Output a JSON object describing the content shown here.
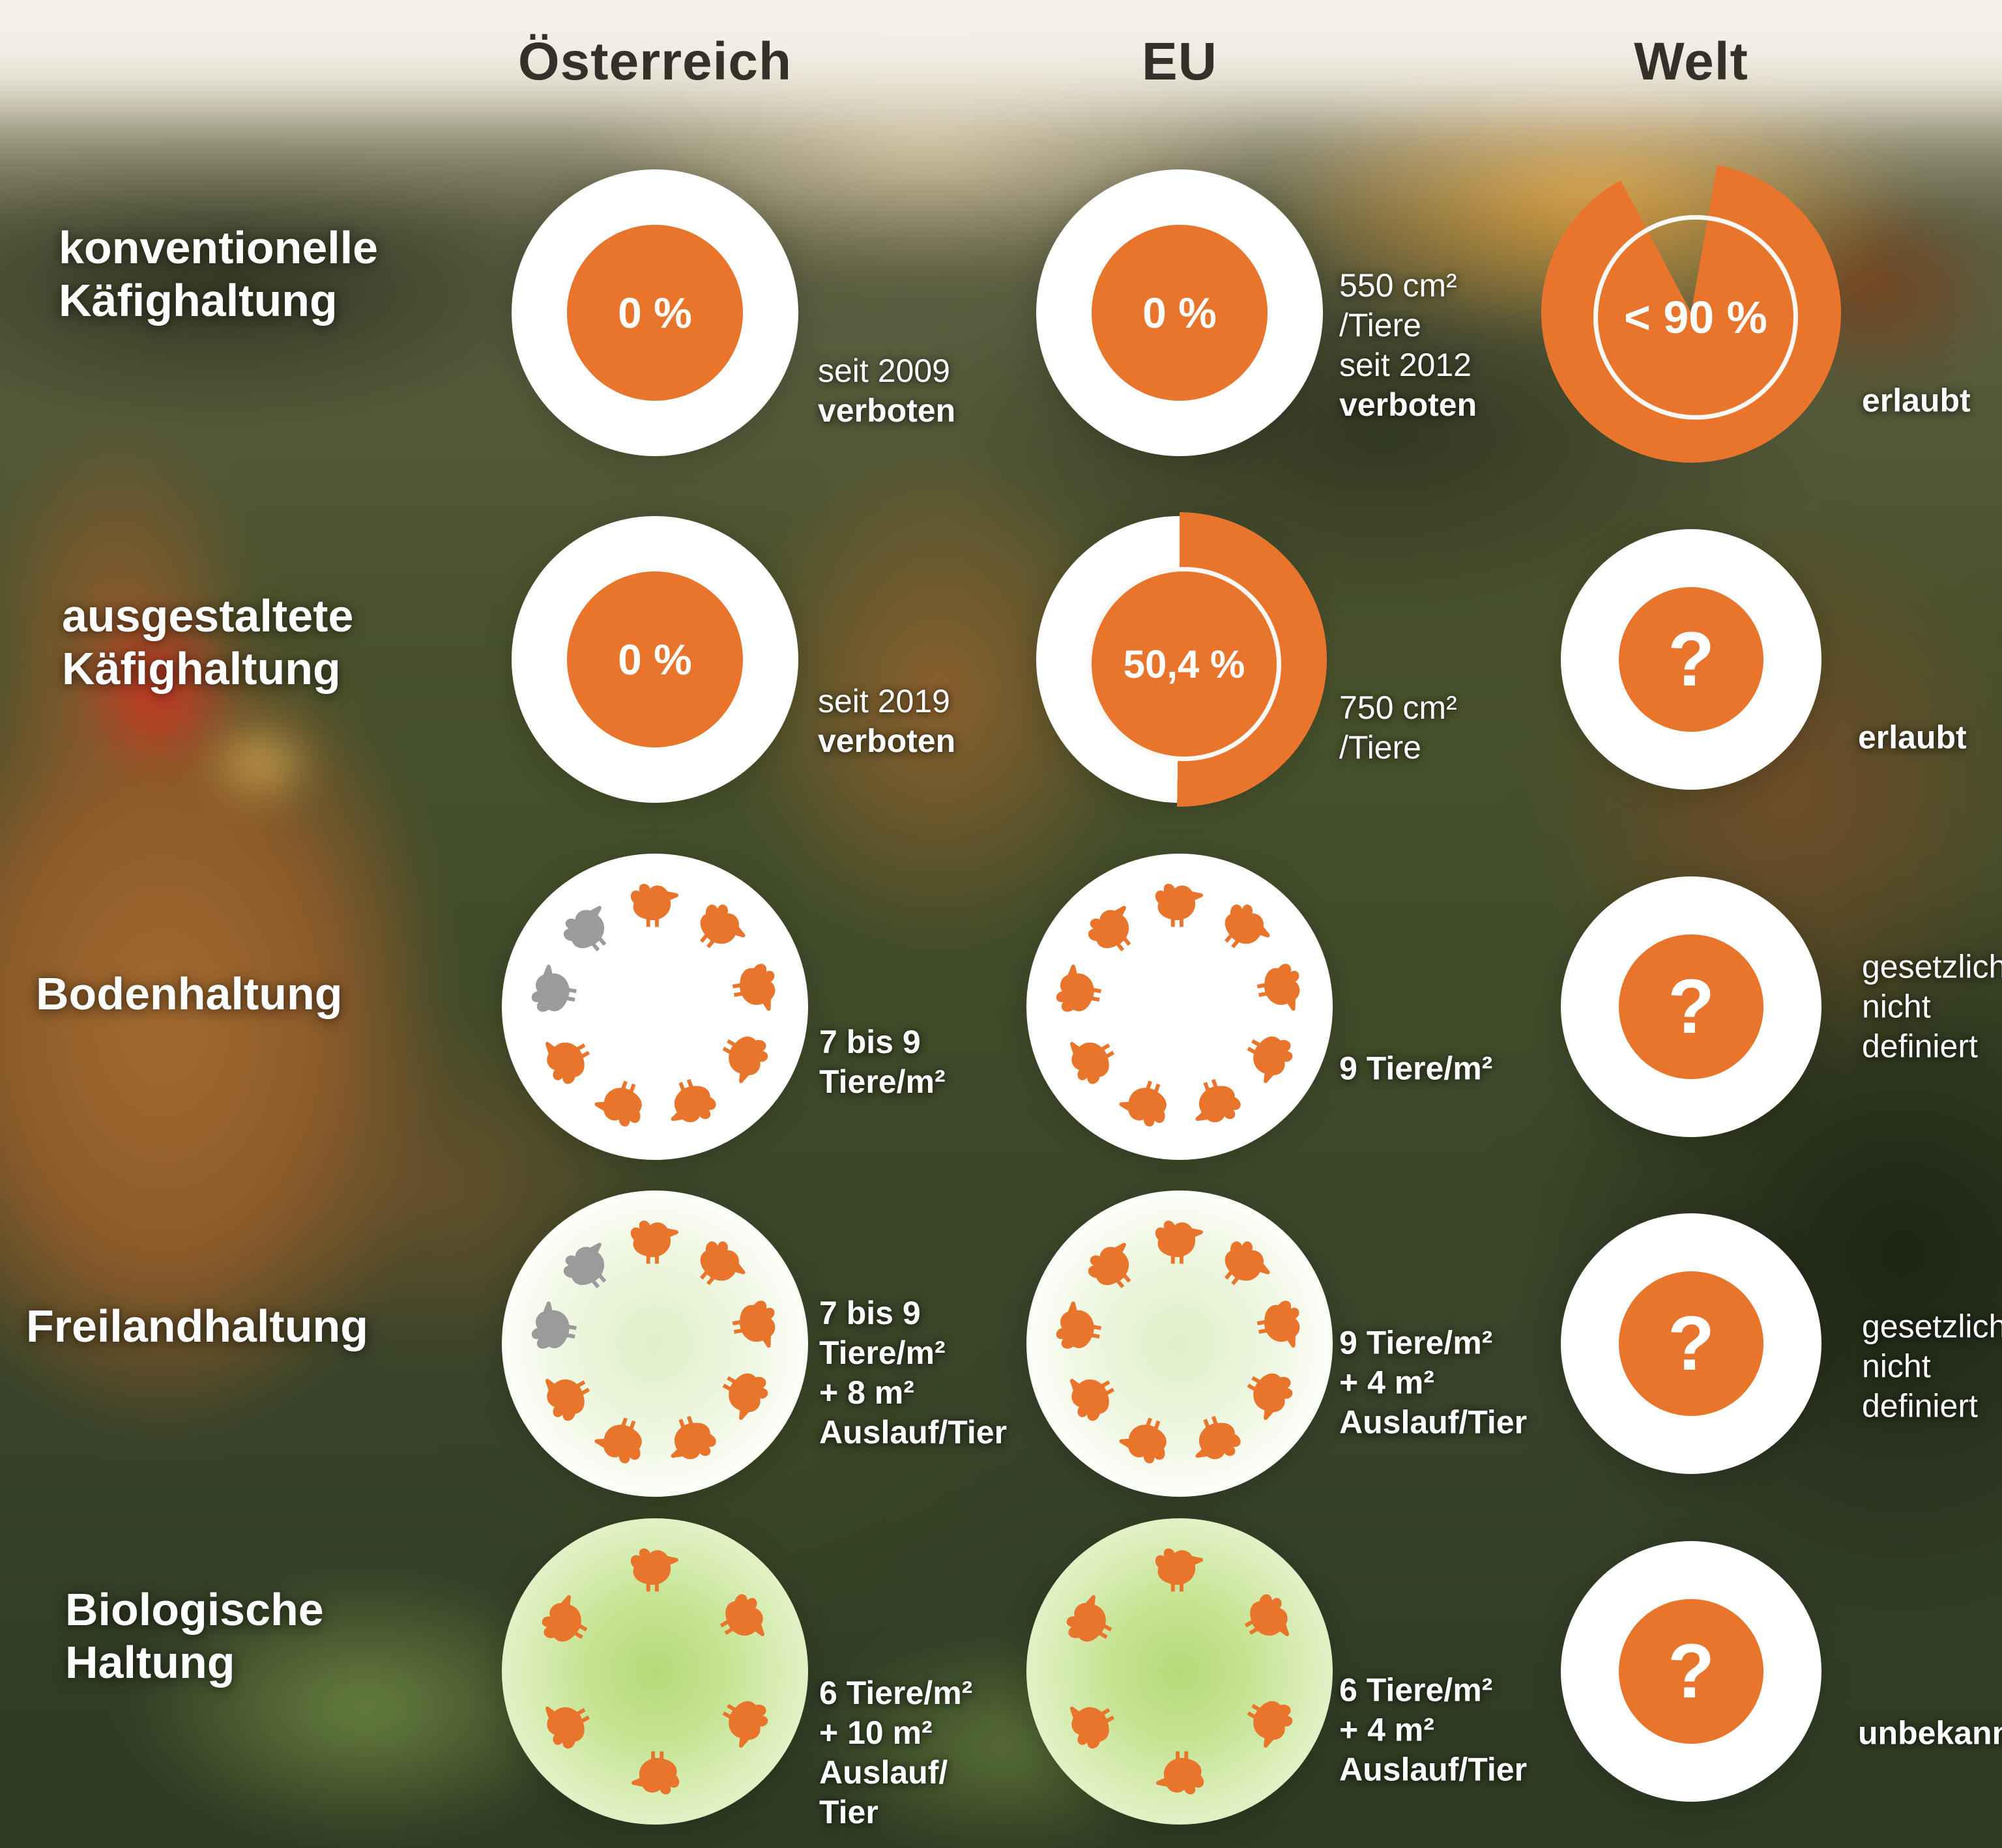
{
  "header": {
    "columns": [
      "Österreich",
      "EU",
      "Welt"
    ]
  },
  "rows": [
    {
      "label_lines": [
        "konventionelle",
        "Käfighaltung"
      ],
      "cells": [
        {
          "type": "disc",
          "value": "0 %",
          "percent": 0,
          "caption": [
            {
              "t": "seit 2009",
              "b": 0
            },
            {
              "t": "verboten",
              "b": 1
            }
          ]
        },
        {
          "type": "disc",
          "value": "0 %",
          "percent": 0,
          "caption": [
            {
              "t": "550 cm²",
              "b": 0
            },
            {
              "t": "/Tiere",
              "b": 0
            },
            {
              "t": "seit 2012",
              "b": 0
            },
            {
              "t": "verboten",
              "b": 1
            }
          ]
        },
        {
          "type": "pie",
          "value": "< 90 %",
          "percent": 90,
          "caption": [
            {
              "t": "erlaubt",
              "b": 1
            }
          ]
        }
      ]
    },
    {
      "label_lines": [
        "ausgestaltete",
        "Käfighaltung"
      ],
      "cells": [
        {
          "type": "disc",
          "value": "0 %",
          "percent": 0,
          "caption": [
            {
              "t": "seit 2019",
              "b": 0
            },
            {
              "t": "verboten",
              "b": 1
            }
          ]
        },
        {
          "type": "half",
          "value": "50,4 %",
          "percent": 50.4,
          "caption": [
            {
              "t": "750 cm²",
              "b": 0
            },
            {
              "t": "/Tiere",
              "b": 0
            }
          ]
        },
        {
          "type": "question",
          "value": "?",
          "caption": [
            {
              "t": "erlaubt",
              "b": 1
            }
          ]
        }
      ]
    },
    {
      "label_lines": [
        "Bodenhaltung"
      ],
      "cells": [
        {
          "type": "chickens",
          "count": 9,
          "gray": 2,
          "ground": "none",
          "caption": [
            {
              "t": "7 bis 9",
              "b": 1
            },
            {
              "t": "Tiere/m²",
              "b": 1
            }
          ]
        },
        {
          "type": "chickens",
          "count": 9,
          "gray": 0,
          "ground": "none",
          "caption": [
            {
              "t": "9 Tiere/m²",
              "b": 1
            }
          ]
        },
        {
          "type": "question",
          "value": "?",
          "caption": [
            {
              "t": "gesetzlich",
              "b": 0
            },
            {
              "t": "nicht",
              "b": 0
            },
            {
              "t": "definiert",
              "b": 0
            }
          ]
        }
      ]
    },
    {
      "label_lines": [
        "Freilandhaltung"
      ],
      "cells": [
        {
          "type": "chickens",
          "count": 9,
          "gray": 2,
          "ground": "light",
          "caption": [
            {
              "t": "7 bis 9",
              "b": 1
            },
            {
              "t": "Tiere/m²",
              "b": 1
            },
            {
              "t": "+ 8 m²",
              "b": 1
            },
            {
              "t": "Auslauf/Tier",
              "b": 1
            }
          ]
        },
        {
          "type": "chickens",
          "count": 9,
          "gray": 0,
          "ground": "light",
          "caption": [
            {
              "t": "9 Tiere/m²",
              "b": 1
            },
            {
              "t": "+ 4 m²",
              "b": 1
            },
            {
              "t": "Auslauf/Tier",
              "b": 1
            }
          ]
        },
        {
          "type": "question",
          "value": "?",
          "caption": [
            {
              "t": "gesetzlich",
              "b": 0
            },
            {
              "t": "nicht",
              "b": 0
            },
            {
              "t": "definiert",
              "b": 0
            }
          ]
        }
      ]
    },
    {
      "label_lines": [
        "Biologische",
        "Haltung"
      ],
      "cells": [
        {
          "type": "chickens",
          "count": 6,
          "gray": 0,
          "ground": "green",
          "caption": [
            {
              "t": "6 Tiere/m²",
              "b": 1
            },
            {
              "t": "+ 10 m²",
              "b": 1
            },
            {
              "t": "Auslauf/",
              "b": 1
            },
            {
              "t": "Tier",
              "b": 1
            }
          ]
        },
        {
          "type": "chickens",
          "count": 6,
          "gray": 0,
          "ground": "green",
          "caption": [
            {
              "t": "6 Tiere/m²",
              "b": 1
            },
            {
              "t": "+ 4 m²",
              "b": 1
            },
            {
              "t": "Auslauf/Tier",
              "b": 1
            }
          ]
        },
        {
          "type": "question",
          "value": "?",
          "caption": [
            {
              "t": "unbekannt",
              "b": 1
            }
          ]
        }
      ]
    }
  ],
  "colors": {
    "accent_orange": "#e8752b",
    "chicken_gray": "#9b9b9b",
    "circle_white": "#ffffff",
    "bio_green": "#bfdf87",
    "header_text": "#35302a",
    "caption_text": "#ffffff"
  },
  "icons": {
    "chicken": "hen-icon",
    "question": "question-mark"
  },
  "chart_data": {
    "type": "table",
    "columns": [
      "Österreich",
      "EU",
      "Welt"
    ],
    "rows": [
      {
        "category": "konventionelle Käfighaltung",
        "values": [
          "0 % (seit 2009 verboten)",
          "0 % (550 cm²/Tiere, seit 2012 verboten)",
          "< 90 % (erlaubt)"
        ]
      },
      {
        "category": "ausgestaltete Käfighaltung",
        "values": [
          "0 % (seit 2019 verboten)",
          "50,4 % (750 cm²/Tiere)",
          "? (erlaubt)"
        ]
      },
      {
        "category": "Bodenhaltung",
        "values": [
          "7 bis 9 Tiere/m²",
          "9 Tiere/m²",
          "? (gesetzlich nicht definiert)"
        ]
      },
      {
        "category": "Freilandhaltung",
        "values": [
          "7 bis 9 Tiere/m² + 8 m² Auslauf/Tier",
          "9 Tiere/m² + 4 m² Auslauf/Tier",
          "? (gesetzlich nicht definiert)"
        ]
      },
      {
        "category": "Biologische Haltung",
        "values": [
          "6 Tiere/m² + 10 m² Auslauf/Tier",
          "6 Tiere/m² + 4 m² Auslauf/Tier",
          "? (unbekannt)"
        ]
      }
    ],
    "legend": "Pictogram matrix: share of laying hens / stocking density per housing type and region"
  }
}
